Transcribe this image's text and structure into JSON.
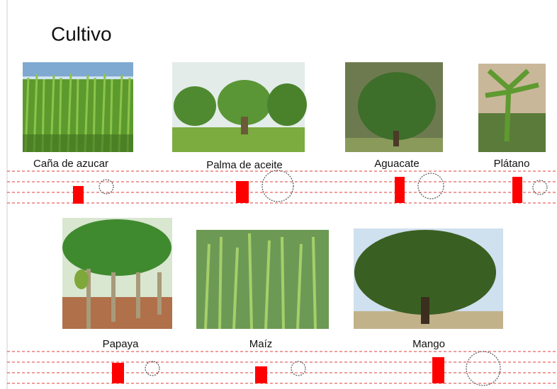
{
  "title": "Cultivo",
  "crops": [
    {
      "label": "Caña de azucar"
    },
    {
      "label": "Palma de aceite"
    },
    {
      "label": "Aguacate"
    },
    {
      "label": "Plátano"
    },
    {
      "label": "Papaya"
    },
    {
      "label": "Maíz"
    },
    {
      "label": "Mango"
    }
  ]
}
